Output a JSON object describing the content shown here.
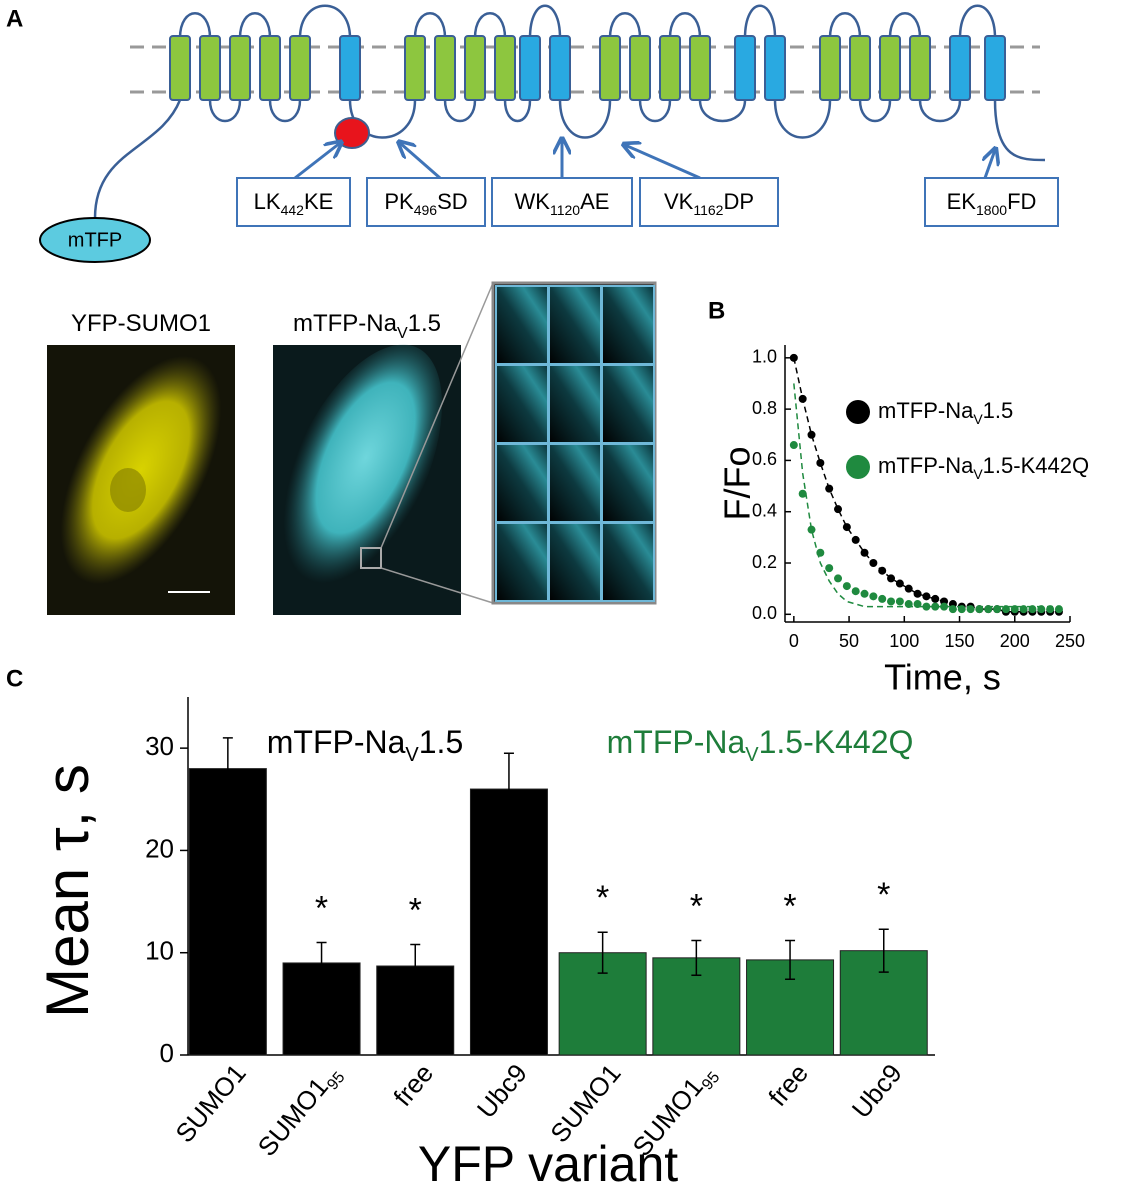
{
  "panel_labels": [
    "A",
    "B",
    "C"
  ],
  "diagram": {
    "tag": "mTFP",
    "sites": [
      [
        "LK",
        "442",
        "KE"
      ],
      [
        "PK",
        "496",
        "SD"
      ],
      [
        "WK",
        "1120",
        "AE"
      ],
      [
        "VK",
        "1162",
        "DP"
      ],
      [
        "EK",
        "1800",
        "FD"
      ]
    ]
  },
  "micrographs": {
    "labels": [
      [
        "YFP-SUMO1"
      ],
      [
        "mTFP-Na",
        "V",
        "1.5"
      ]
    ]
  },
  "chart_data": [
    {
      "type": "scatter",
      "xlabel": "Time, s",
      "ylabel": "F/Fo",
      "x": [
        0,
        8,
        16,
        24,
        32,
        40,
        48,
        56,
        64,
        72,
        80,
        88,
        96,
        104,
        112,
        120,
        128,
        136,
        144,
        152,
        160,
        168,
        176,
        184,
        192,
        200,
        208,
        216,
        224,
        232,
        240
      ],
      "series": [
        {
          "name": [
            "mTFP-Na",
            "V",
            "1.5"
          ],
          "color": "#000000",
          "values": [
            1.0,
            0.84,
            0.7,
            0.59,
            0.49,
            0.41,
            0.34,
            0.29,
            0.24,
            0.2,
            0.17,
            0.14,
            0.12,
            0.1,
            0.08,
            0.07,
            0.06,
            0.05,
            0.04,
            0.03,
            0.03,
            0.02,
            0.02,
            0.02,
            0.01,
            0.01,
            0.01,
            0.01,
            0.01,
            0.01,
            0.01
          ],
          "fit": [
            1.0,
            0.84,
            0.7,
            0.59,
            0.49,
            0.41,
            0.34,
            0.29,
            0.24,
            0.2,
            0.17,
            0.14,
            0.12,
            0.1,
            0.08,
            0.07,
            0.06,
            0.05,
            0.04,
            0.03,
            0.03,
            0.02,
            0.02,
            0.02,
            0.01,
            0.01,
            0.01,
            0.01,
            0.01,
            0.01,
            0.01
          ]
        },
        {
          "name": [
            "mTFP-Na",
            "V",
            "1.5-K442Q"
          ],
          "color": "#1f8a3f",
          "values": [
            0.66,
            0.47,
            0.33,
            0.24,
            0.18,
            0.14,
            0.11,
            0.09,
            0.08,
            0.07,
            0.06,
            0.05,
            0.05,
            0.04,
            0.04,
            0.03,
            0.03,
            0.03,
            0.02,
            0.02,
            0.02,
            0.02,
            0.02,
            0.02,
            0.02,
            0.02,
            0.02,
            0.02,
            0.02,
            0.02,
            0.02
          ],
          "fit": [
            0.9,
            0.55,
            0.33,
            0.2,
            0.13,
            0.08,
            0.05,
            0.04,
            0.03,
            0.03,
            0.03,
            0.03,
            0.03,
            0.03,
            0.03,
            0.03,
            0.03,
            0.03,
            0.03,
            0.03,
            0.03,
            0.03,
            0.03,
            0.03,
            0.03,
            0.03,
            0.03,
            0.03,
            0.03,
            0.03,
            0.03
          ]
        }
      ],
      "xlim": [
        -8,
        250
      ],
      "ylim": [
        -0.03,
        1.05
      ],
      "xticks": [
        0,
        50,
        100,
        150,
        200,
        250
      ],
      "yticks": [
        {
          "value": 0,
          "label": "0.0"
        },
        0.2,
        0.4,
        0.6,
        0.8,
        {
          "value": 1,
          "label": "1.0"
        }
      ]
    },
    {
      "type": "bar",
      "xlabel": "YFP variant",
      "ylabel": "Mean τ, s",
      "categories": [
        [
          "SUMO1"
        ],
        [
          "SUMO1",
          "95"
        ],
        [
          "free"
        ],
        [
          "Ubc9"
        ],
        [
          "SUMO1"
        ],
        [
          "SUMO1",
          "95"
        ],
        [
          "free"
        ],
        [
          "Ubc9"
        ]
      ],
      "series": [
        {
          "name": [
            "mTFP-Na",
            "V",
            "1.5"
          ],
          "color": "#000000",
          "values": [
            28,
            9,
            8.7,
            26,
            null,
            null,
            null,
            null
          ],
          "errors": [
            3,
            2,
            2.1,
            3.5,
            null,
            null,
            null,
            null
          ],
          "annotations": [
            null,
            "*",
            "*",
            null,
            null,
            null,
            null,
            null
          ]
        },
        {
          "name": [
            "mTFP-Na",
            "V",
            "1.5-K442Q"
          ],
          "color": "#1e7d3a",
          "values": [
            null,
            null,
            null,
            null,
            10,
            9.5,
            9.3,
            10.2
          ],
          "errors": [
            null,
            null,
            null,
            null,
            2,
            1.7,
            1.9,
            2.1
          ],
          "annotations": [
            null,
            null,
            null,
            null,
            "*",
            "*",
            "*",
            "*"
          ]
        }
      ],
      "ylim": [
        0,
        35
      ],
      "yticks": [
        0,
        10,
        20,
        30
      ]
    }
  ]
}
